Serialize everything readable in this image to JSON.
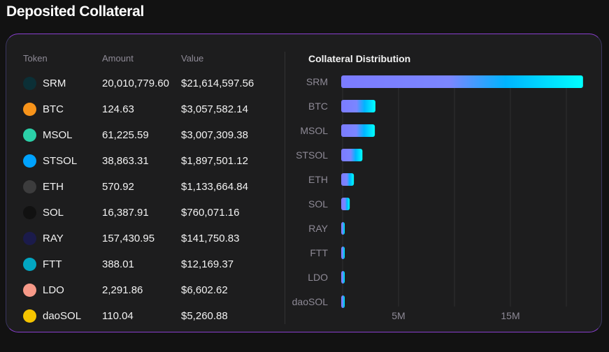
{
  "title": "Deposited Collateral",
  "table": {
    "headers": [
      "Token",
      "Amount",
      "Value"
    ],
    "rows": [
      {
        "token": "SRM",
        "amount": "20,010,779.60",
        "value": "$21,614,597.56",
        "icon": "srm-icon",
        "color": "#0b2f36"
      },
      {
        "token": "BTC",
        "amount": "124.63",
        "value": "$3,057,582.14",
        "icon": "btc-icon",
        "color": "#f7931a"
      },
      {
        "token": "MSOL",
        "amount": "61,225.59",
        "value": "$3,007,309.38",
        "icon": "msol-icon",
        "color": "#2bd0a8"
      },
      {
        "token": "STSOL",
        "amount": "38,863.31",
        "value": "$1,897,501.12",
        "icon": "stsol-icon",
        "color": "#00a3ff"
      },
      {
        "token": "ETH",
        "amount": "570.92",
        "value": "$1,133,664.84",
        "icon": "eth-icon",
        "color": "#3c3c3d"
      },
      {
        "token": "SOL",
        "amount": "16,387.91",
        "value": "$760,071.16",
        "icon": "sol-icon",
        "color": "#111"
      },
      {
        "token": "RAY",
        "amount": "157,430.95",
        "value": "$141,750.83",
        "icon": "ray-icon",
        "color": "#1b1b4b"
      },
      {
        "token": "FTT",
        "amount": "388.01",
        "value": "$12,169.37",
        "icon": "ftt-icon",
        "color": "#02a6c2"
      },
      {
        "token": "LDO",
        "amount": "2,291.86",
        "value": "$6,602.62",
        "icon": "ldo-icon",
        "color": "#f69988"
      },
      {
        "token": "daoSOL",
        "amount": "110.04",
        "value": "$5,260.88",
        "icon": "daosol-icon",
        "color": "#f5c400"
      }
    ]
  },
  "chart_data": {
    "type": "bar",
    "orientation": "horizontal",
    "title": "Collateral Distribution",
    "categories": [
      "SRM",
      "BTC",
      "MSOL",
      "STSOL",
      "ETH",
      "SOL",
      "RAY",
      "FTT",
      "LDO",
      "daoSOL"
    ],
    "values": [
      21614597.56,
      3057582.14,
      3007309.38,
      1897501.12,
      1133664.84,
      760071.16,
      141750.83,
      12169.37,
      6602.62,
      5260.88
    ],
    "xlim": [
      0,
      22000000
    ],
    "xticks": [
      {
        "value": 5000000,
        "label": "5M"
      },
      {
        "value": 15000000,
        "label": "15M"
      }
    ],
    "gridlines": [
      0,
      5000000,
      10000000,
      15000000,
      20000000
    ],
    "colors": {
      "start": "#7b7bff",
      "mid": "#00b4ff",
      "end": "#00ffff"
    }
  }
}
